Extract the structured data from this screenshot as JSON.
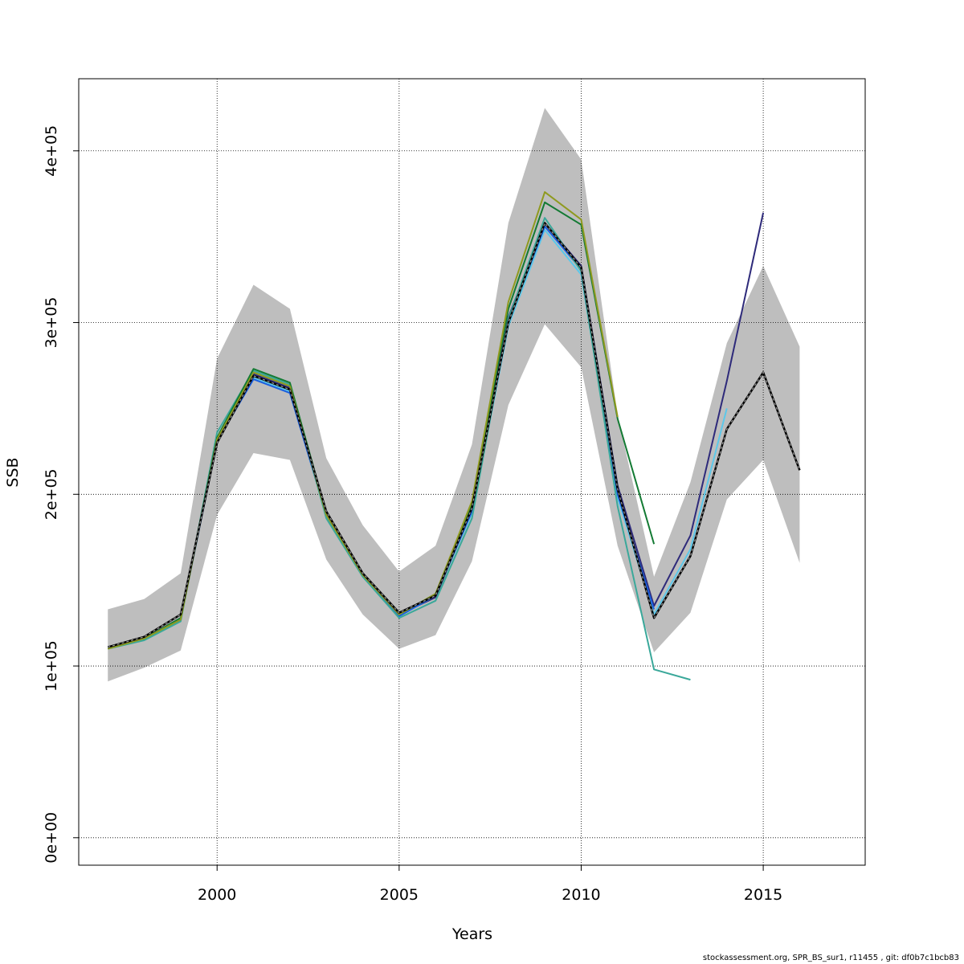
{
  "chart_data": {
    "type": "line",
    "title": "",
    "xlabel": "Years",
    "ylabel": "SSB",
    "xlim": [
      1996.2,
      2017.8
    ],
    "ylim": [
      -16000,
      442000
    ],
    "x_ticks": [
      2000,
      2005,
      2010,
      2015
    ],
    "x_tick_labels": [
      "2000",
      "2005",
      "2010",
      "2015"
    ],
    "y_ticks": [
      0,
      100000,
      200000,
      300000,
      400000
    ],
    "y_tick_labels": [
      "0e+00",
      "1e+05",
      "2e+05",
      "3e+05",
      "4e+05"
    ],
    "grid": true,
    "confidence_band": {
      "color": "#bebebe",
      "x": [
        1997,
        1998,
        1999,
        2000,
        2001,
        2002,
        2003,
        2004,
        2005,
        2006,
        2007,
        2008,
        2009,
        2010,
        2011,
        2012,
        2013,
        2014,
        2015,
        2016
      ],
      "lower": [
        91000,
        99000,
        109000,
        188000,
        224000,
        220000,
        162000,
        130000,
        110000,
        118000,
        161000,
        252000,
        299000,
        274000,
        170000,
        108000,
        131000,
        197000,
        220000,
        160000
      ],
      "upper": [
        133000,
        139000,
        154000,
        279000,
        322000,
        308000,
        221000,
        182000,
        155000,
        170000,
        229000,
        358000,
        425000,
        395000,
        246000,
        152000,
        207000,
        288000,
        333000,
        286000
      ]
    },
    "series": [
      {
        "color": "#000000",
        "dashed": true,
        "x": [
          1997,
          1998,
          1999,
          2000,
          2001,
          2002,
          2003,
          2004,
          2005,
          2006,
          2007,
          2008,
          2009,
          2010,
          2011,
          2012,
          2013,
          2014,
          2015,
          2016
        ],
        "values": [
          111000,
          117000,
          130000,
          230000,
          269000,
          261000,
          190000,
          154000,
          131000,
          141000,
          192000,
          300000,
          358000,
          332000,
          203000,
          128000,
          164000,
          238000,
          271000,
          214000
        ]
      },
      {
        "color": "#2e2a7a",
        "dashed": false,
        "x": [
          1997,
          1998,
          1999,
          2000,
          2001,
          2002,
          2003,
          2004,
          2005,
          2006,
          2007,
          2008,
          2009,
          2010,
          2011,
          2012,
          2013,
          2014,
          2015
        ],
        "values": [
          111000,
          116000,
          128000,
          231000,
          270000,
          262000,
          189000,
          153000,
          130000,
          140000,
          191000,
          303000,
          358000,
          333000,
          205000,
          135000,
          176000,
          266000,
          364000
        ]
      },
      {
        "color": "#5cc8ea",
        "dashed": false,
        "x": [
          1997,
          1998,
          1999,
          2000,
          2001,
          2002,
          2003,
          2004,
          2005,
          2006,
          2007,
          2008,
          2009,
          2010,
          2011,
          2012,
          2013,
          2014
        ],
        "values": [
          111000,
          116000,
          127000,
          232000,
          268000,
          260000,
          188000,
          152000,
          129000,
          141000,
          189000,
          298000,
          354000,
          328000,
          198000,
          130000,
          168000,
          250000
        ]
      },
      {
        "color": "#1a5fe0",
        "dashed": false,
        "x": [
          1997,
          1998,
          1999,
          2000,
          2001,
          2002,
          2003,
          2004,
          2005,
          2006,
          2007,
          2008,
          2009,
          2010,
          2011,
          2012
        ],
        "values": [
          111000,
          116000,
          127000,
          231000,
          267000,
          259000,
          188000,
          153000,
          129000,
          141000,
          190000,
          301000,
          356000,
          331000,
          200000,
          133000
        ]
      },
      {
        "color": "#3aa89a",
        "dashed": false,
        "x": [
          1997,
          1998,
          1999,
          2000,
          2001,
          2002,
          2003,
          2004,
          2005,
          2006,
          2007,
          2008,
          2009,
          2010,
          2011,
          2012,
          2013
        ],
        "values": [
          110000,
          115000,
          126000,
          236000,
          272000,
          264000,
          186000,
          152000,
          128000,
          138000,
          186000,
          302000,
          361000,
          330000,
          193000,
          98000,
          92000
        ]
      },
      {
        "color": "#137a33",
        "dashed": false,
        "x": [
          1997,
          1998,
          1999,
          2000,
          2001,
          2002,
          2003,
          2004,
          2005,
          2006,
          2007,
          2008,
          2009,
          2010,
          2011,
          2012
        ],
        "values": [
          111000,
          116000,
          128000,
          233000,
          273000,
          265000,
          189000,
          154000,
          130000,
          142000,
          194000,
          308000,
          370000,
          357000,
          244000,
          171000
        ]
      },
      {
        "color": "#8f9a1f",
        "dashed": false,
        "x": [
          1997,
          1998,
          1999,
          2000,
          2001,
          2002,
          2003,
          2004,
          2005,
          2006,
          2007,
          2008,
          2009,
          2010,
          2011
        ],
        "values": [
          110000,
          116000,
          127000,
          232000,
          271000,
          263000,
          188000,
          153000,
          130000,
          142000,
          196000,
          312000,
          376000,
          360000,
          245000
        ]
      }
    ]
  },
  "footer": {
    "text": "stockassessment.org, SPR_BS_sur1, r11455 , git: df0b7c1bcb83"
  }
}
